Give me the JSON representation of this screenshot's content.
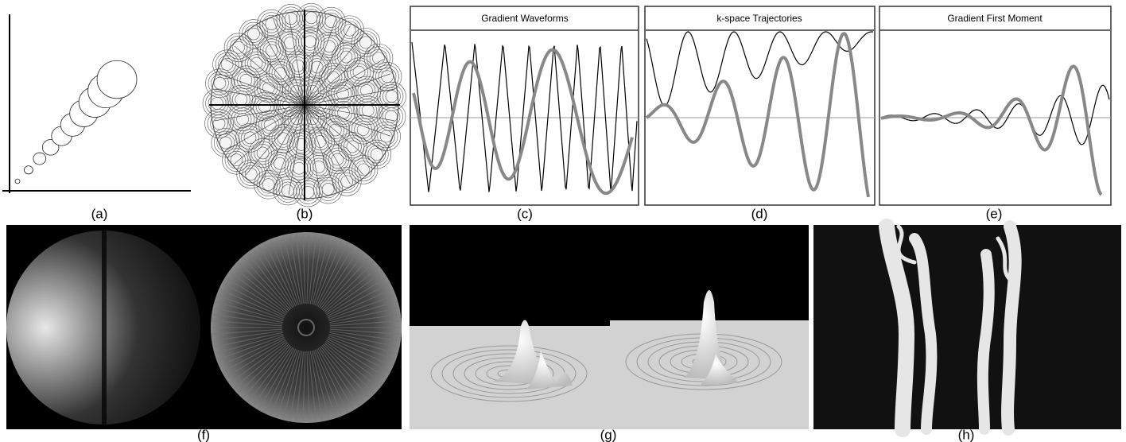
{
  "panels": [
    {
      "label": "(a)"
    },
    {
      "label": "(b)"
    },
    {
      "label": "(c)",
      "title": "Gradient Waveforms"
    },
    {
      "label": "(d)",
      "title": "k-space Trajectories"
    },
    {
      "label": "(e)",
      "title": "Gradient First Moment"
    },
    {
      "label": "(f)"
    },
    {
      "label": "(g)"
    },
    {
      "label": "(h)"
    }
  ]
}
